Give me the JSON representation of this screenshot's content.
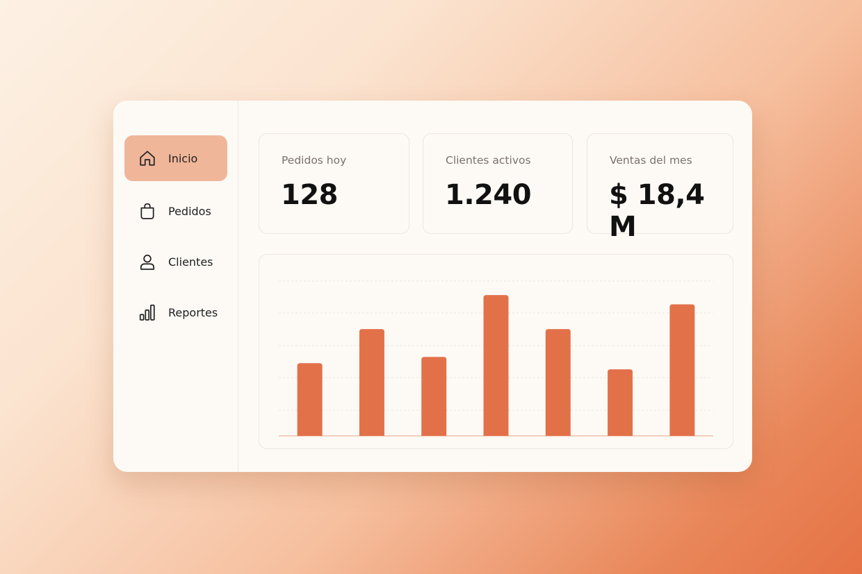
{
  "nav": {
    "active": 0,
    "items": [
      {
        "label": "Inicio"
      },
      {
        "label": "Pedidos"
      },
      {
        "label": "Clientes"
      },
      {
        "label": "Reportes"
      }
    ]
  },
  "stats": [
    {
      "label": "Pedidos hoy",
      "value": "128"
    },
    {
      "label": "Clientes activos",
      "value": "1.240"
    },
    {
      "label": "Ventas del mes",
      "value": "$ 18,4 M"
    }
  ],
  "chart_data": {
    "type": "bar",
    "categories": [
      null,
      null,
      null,
      null,
      null,
      null,
      null
    ],
    "values": [
      47,
      69,
      51,
      91,
      69,
      43,
      85
    ],
    "color": "#e2714a",
    "ylim": [
      0,
      100
    ]
  }
}
